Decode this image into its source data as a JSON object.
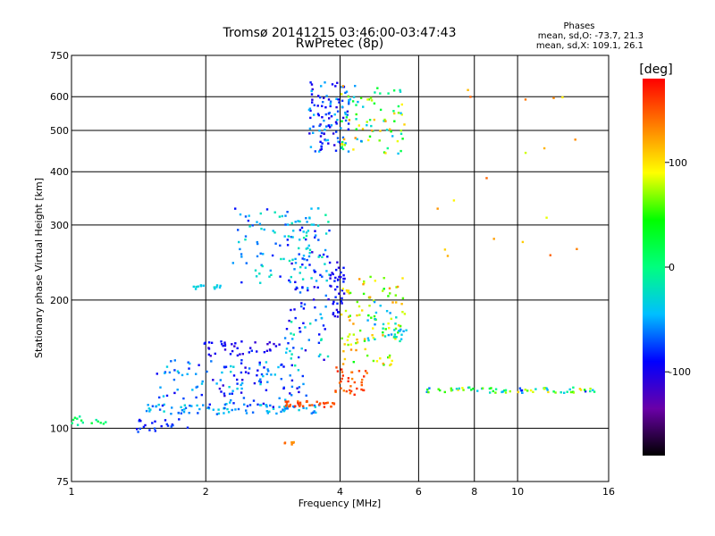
{
  "chart_data": {
    "type": "scatter",
    "title": "Tromsø 20141215 03:46:00-03:47:43",
    "subtitle": "RwPretec (8p)",
    "xlabel": "Frequency [MHz]",
    "ylabel": "Stationary phase Virtual Height [km]",
    "x_scale": "log",
    "y_scale": "log",
    "xlim": [
      1,
      16
    ],
    "ylim": [
      75,
      750
    ],
    "x_ticks": [
      1,
      2,
      4,
      6,
      8,
      10,
      16
    ],
    "x_gridlines": [
      2,
      4,
      6,
      8,
      10
    ],
    "y_ticks": [
      75,
      100,
      200,
      300,
      400,
      500,
      600,
      750
    ],
    "y_gridlines": [
      100,
      200,
      300,
      400,
      500,
      600
    ],
    "grid": true,
    "stats": {
      "heading": "Phases",
      "o_line": "mean, sd,O: -73.7, 21.3",
      "x_line": "mean, sd,X: 109.1, 26.1"
    },
    "colorbar": {
      "label": "[deg]",
      "range": [
        -180,
        180
      ],
      "ticks": [
        100,
        0,
        -100
      ],
      "colors": [
        "#000000",
        "#6a00a8",
        "#0000ff",
        "#00bfff",
        "#00ff7f",
        "#00ff00",
        "#ffff00",
        "#ff7f00",
        "#ff0000"
      ]
    },
    "clusters": [
      {
        "x": [
          1.0,
          1.22
        ],
        "y": [
          101,
          107
        ],
        "n": 14,
        "phase": [
          -15,
          25
        ]
      },
      {
        "x": [
          1.4,
          1.85
        ],
        "y": [
          98,
          106
        ],
        "n": 22,
        "phase": [
          -100,
          -70
        ]
      },
      {
        "x": [
          1.45,
          3.6
        ],
        "y": [
          108,
          114
        ],
        "n": 80,
        "phase": [
          -75,
          -25
        ]
      },
      {
        "x": [
          1.55,
          3.4
        ],
        "y": [
          112,
          145
        ],
        "n": 130,
        "phase": [
          -110,
          -30
        ]
      },
      {
        "x": [
          1.95,
          3.0
        ],
        "y": [
          148,
          160
        ],
        "n": 40,
        "phase": [
          -115,
          -80
        ]
      },
      {
        "x": [
          1.85,
          2.2
        ],
        "y": [
          212,
          218
        ],
        "n": 14,
        "phase": [
          -45,
          -20
        ]
      },
      {
        "x": [
          2.3,
          3.6
        ],
        "y": [
          218,
          330
        ],
        "n": 80,
        "phase": [
          -90,
          -15
        ]
      },
      {
        "x": [
          3.0,
          3.8
        ],
        "y": [
          140,
          320
        ],
        "n": 120,
        "phase": [
          -110,
          -10
        ]
      },
      {
        "x": [
          3.8,
          4.1
        ],
        "y": [
          180,
          250
        ],
        "n": 40,
        "phase": [
          -110,
          -80
        ]
      },
      {
        "x": [
          3.0,
          3.9
        ],
        "y": [
          112,
          116
        ],
        "n": 35,
        "phase": [
          140,
          170
        ]
      },
      {
        "x": [
          3.9,
          4.6
        ],
        "y": [
          120,
          140
        ],
        "n": 35,
        "phase": [
          130,
          170
        ]
      },
      {
        "x": [
          4.0,
          5.6
        ],
        "y": [
          140,
          230
        ],
        "n": 100,
        "phase": [
          40,
          130
        ]
      },
      {
        "x": [
          4.6,
          5.7
        ],
        "y": [
          160,
          200
        ],
        "n": 30,
        "phase": [
          -60,
          -10
        ]
      },
      {
        "x": [
          3.4,
          4.2
        ],
        "y": [
          440,
          650
        ],
        "n": 110,
        "phase": [
          -110,
          -40
        ]
      },
      {
        "x": [
          4.0,
          5.6
        ],
        "y": [
          440,
          640
        ],
        "n": 80,
        "phase": [
          -60,
          130
        ]
      },
      {
        "x": [
          6.2,
          15.0
        ],
        "y": [
          121,
          125
        ],
        "n": 70,
        "phase": [
          -100,
          110
        ]
      },
      {
        "x": [
          6.0,
          14.0
        ],
        "y": [
          250,
          650
        ],
        "n": 18,
        "phase": [
          80,
          150
        ]
      },
      {
        "x": [
          3.0,
          3.2
        ],
        "y": [
          91,
          93
        ],
        "n": 6,
        "phase": [
          125,
          150
        ]
      }
    ]
  }
}
